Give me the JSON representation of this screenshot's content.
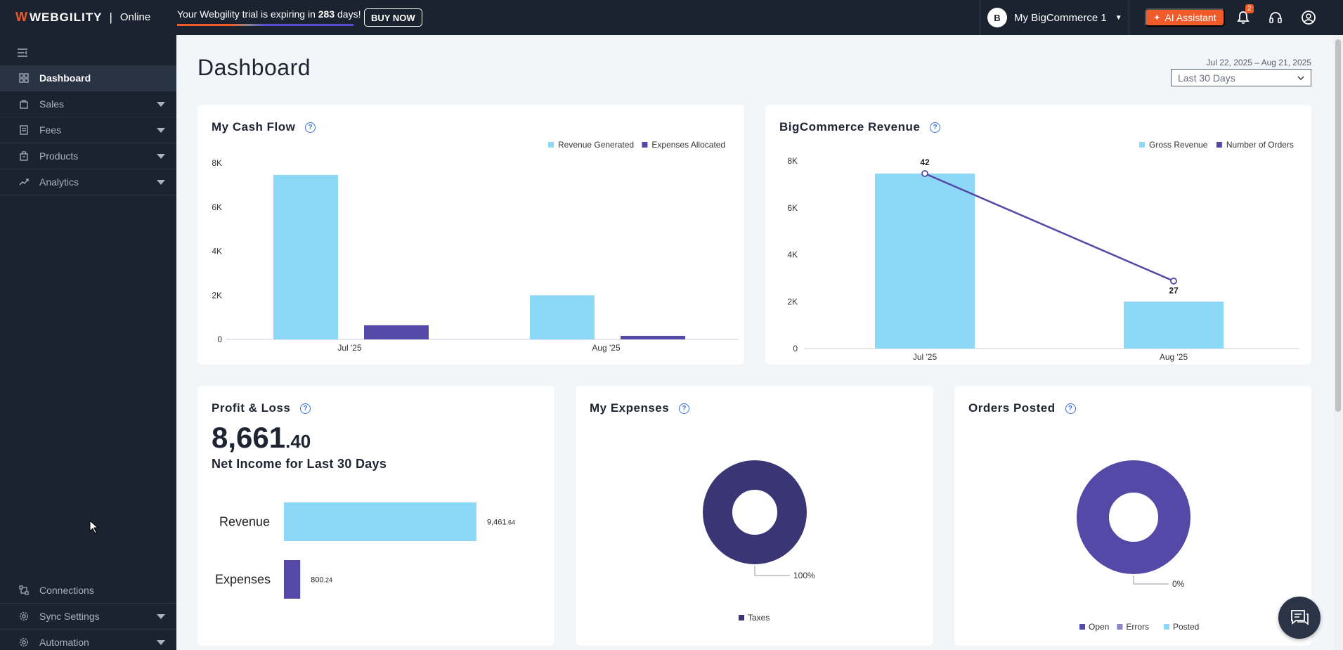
{
  "brand": {
    "name": "WEBGILITY",
    "mark": "W",
    "separator": "|",
    "edition": "Online"
  },
  "trial": {
    "prefix": "Your Webgility trial is expiring in ",
    "days": "283",
    "suffix": " days!"
  },
  "buy_label": "BUY NOW",
  "store": {
    "initial": "B",
    "name": "My BigCommerce 1"
  },
  "ai_label": "AI Assistant",
  "notifications": {
    "count": "2"
  },
  "sidebar": {
    "items": [
      {
        "label": "Dashboard",
        "icon": "grid-icon"
      },
      {
        "label": "Sales",
        "icon": "bag-icon"
      },
      {
        "label": "Fees",
        "icon": "receipt-icon"
      },
      {
        "label": "Products",
        "icon": "box-icon"
      },
      {
        "label": "Analytics",
        "icon": "trend-icon"
      }
    ],
    "bottom_items": [
      {
        "label": "Connections",
        "icon": "connections-icon"
      },
      {
        "label": "Sync Settings",
        "icon": "gear-icon"
      },
      {
        "label": "Automation",
        "icon": "automation-icon"
      }
    ]
  },
  "page": {
    "title": "Dashboard",
    "date_range": "Jul 22, 2025 – Aug 21, 2025",
    "period": "Last 30 Days"
  },
  "cash_flow": {
    "title": "My Cash Flow",
    "chart_data": {
      "type": "bar",
      "categories": [
        "Jul '25",
        "Aug '25"
      ],
      "series": [
        {
          "name": "Revenue Generated",
          "values": [
            7461.64,
            2000
          ],
          "color": "#8dd7f7"
        },
        {
          "name": "Expenses Allocated",
          "values": [
            640,
            160.24
          ],
          "color": "#5549a8"
        }
      ],
      "yticks": [
        "0",
        "2K",
        "4K",
        "6K",
        "8K"
      ],
      "ylim": [
        0,
        8000
      ]
    }
  },
  "revenue": {
    "title": "BigCommerce Revenue",
    "chart_data": {
      "type": "bar",
      "categories": [
        "Jul '25",
        "Aug '25"
      ],
      "series": [
        {
          "name": "Gross Revenue",
          "values": [
            7461.64,
            2000
          ],
          "color": "#8dd7f7"
        },
        {
          "name": "Number of Orders",
          "values": [
            42,
            27
          ],
          "color": "#5549a8"
        }
      ],
      "order_labels": [
        "42",
        "27"
      ],
      "yticks": [
        "0",
        "2K",
        "4K",
        "6K",
        "8K"
      ],
      "ylim": [
        0,
        8000
      ]
    }
  },
  "pl": {
    "title": "Profit & Loss",
    "amount_int": "8,661",
    "amount_dec": ".40",
    "subtitle": "Net Income for Last 30 Days",
    "chart_data": {
      "type": "bar",
      "categories": [
        "Revenue",
        "Expenses"
      ],
      "values": [
        9461.64,
        800.24
      ],
      "value_labels": [
        {
          "main": "9,461",
          "dec": ".64"
        },
        {
          "main": "800",
          "dec": ".24"
        }
      ],
      "colors": [
        "#8dd7f7",
        "#5549a8"
      ]
    }
  },
  "expenses": {
    "title": "My Expenses",
    "chart_data": {
      "type": "pie",
      "labels": [
        "Taxes"
      ],
      "values": [
        100
      ],
      "pct_label": "100%",
      "colors": [
        "#3a3675"
      ]
    }
  },
  "orders": {
    "title": "Orders Posted",
    "chart_data": {
      "type": "pie",
      "labels": [
        "Open",
        "Errors",
        "Posted"
      ],
      "values": [
        100,
        0,
        0
      ],
      "pct_label": "0%",
      "colors": [
        "#5549a8",
        "#8a86c8",
        "#8dd7f7"
      ]
    }
  },
  "colors": {
    "sidebar": "#1b2330",
    "accent": "#f15a29",
    "primary_bar": "#8dd7f7",
    "secondary_bar": "#5549a8"
  }
}
